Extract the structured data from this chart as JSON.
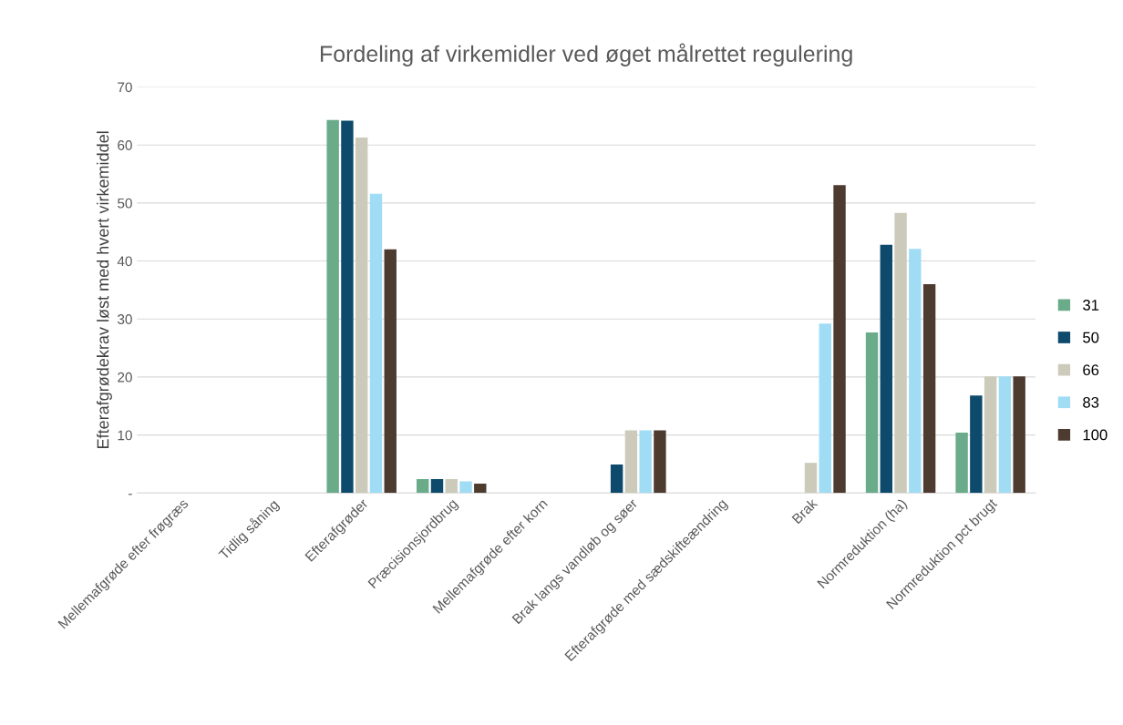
{
  "chart_data": {
    "type": "bar",
    "title": "Fordeling af virkemidler ved øget målrettet regulering",
    "ylabel": "Efterafgrødekrav løst med hvert virkemiddel",
    "categories": [
      "Mellemafgrøde efter frøgræs",
      "Tidlig såning",
      "Efterafgrøder",
      "Præcisionsjordbrug",
      "Mellemafgrøde efter korn",
      "Brak langs vandløb og søer",
      "Efterafgrøde med sædskifteændring",
      "Brak",
      "Normreduktion (ha)",
      "Normreduktion pct brugt"
    ],
    "series": [
      {
        "name": "31",
        "color": "#6aab8a",
        "values": [
          null,
          null,
          64.3,
          2.4,
          null,
          null,
          null,
          null,
          27.7,
          10.4
        ]
      },
      {
        "name": "50",
        "color": "#0d4a6b",
        "values": [
          null,
          null,
          64.2,
          2.4,
          null,
          4.9,
          null,
          null,
          42.8,
          16.8
        ]
      },
      {
        "name": "66",
        "color": "#cccbbb",
        "values": [
          null,
          null,
          61.3,
          2.4,
          null,
          10.8,
          null,
          5.2,
          48.3,
          20.1
        ]
      },
      {
        "name": "83",
        "color": "#a1dcf5",
        "values": [
          null,
          null,
          51.6,
          2.0,
          null,
          10.8,
          null,
          29.2,
          42.1,
          20.1
        ]
      },
      {
        "name": "100",
        "color": "#4d3b30",
        "values": [
          null,
          null,
          42.0,
          1.6,
          null,
          10.8,
          null,
          53.1,
          36.0,
          20.1
        ]
      }
    ],
    "ylim": [
      0,
      70
    ],
    "yticks": [
      {
        "value": 0,
        "label": "-"
      },
      10,
      20,
      30,
      40,
      50,
      60,
      70
    ],
    "grid": "y",
    "legend": "right"
  }
}
